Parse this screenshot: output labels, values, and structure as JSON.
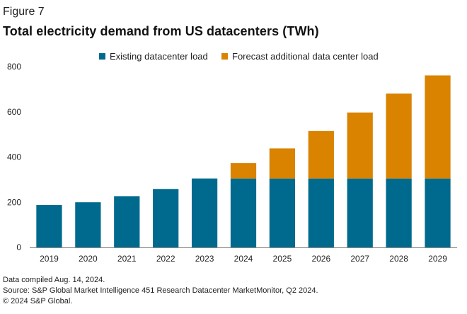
{
  "figure_label": "Figure 7",
  "title": "Total electricity demand from US datacenters (TWh)",
  "legend": [
    {
      "label": "Existing datacenter load",
      "color": "#006A8E"
    },
    {
      "label": "Forecast additional data center load",
      "color": "#D98300"
    }
  ],
  "footnotes": [
    "Data compiled Aug. 14, 2024.",
    "Source: S&P Global Market Intelligence 451 Research Datacenter MarketMonitor, Q2 2024.",
    "© 2024 S&P Global."
  ],
  "chart_data": {
    "type": "bar",
    "stacked": true,
    "title": "Total electricity demand from US datacenters (TWh)",
    "categories": [
      "2019",
      "2020",
      "2021",
      "2022",
      "2023",
      "2024",
      "2025",
      "2026",
      "2027",
      "2028",
      "2029"
    ],
    "series": [
      {
        "name": "Existing datacenter load",
        "color": "#006A8E",
        "values": [
          188,
          200,
          226,
          258,
          305,
          305,
          305,
          305,
          305,
          305,
          305
        ]
      },
      {
        "name": "Forecast additional data center load",
        "color": "#D98300",
        "values": [
          0,
          0,
          0,
          0,
          0,
          68,
          133,
          210,
          292,
          376,
          456
        ]
      }
    ],
    "ylim": [
      0,
      800
    ],
    "yticks": [
      0,
      200,
      400,
      600,
      800
    ],
    "grid": false,
    "legend_position": "top"
  }
}
